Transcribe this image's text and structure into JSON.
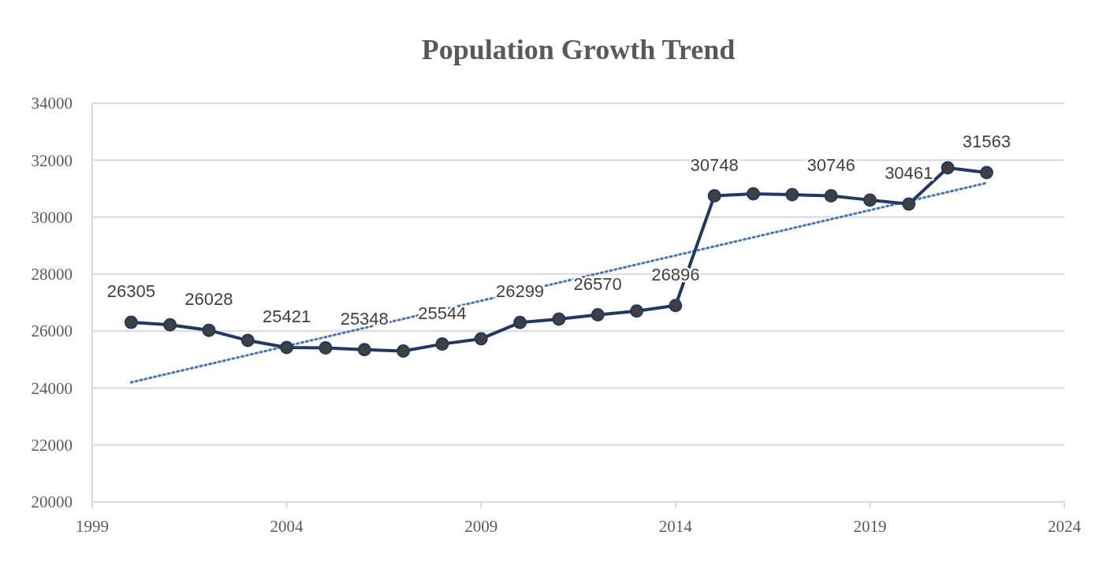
{
  "chart_data": {
    "type": "line",
    "title": "Population Growth Trend",
    "xlim": [
      1999,
      2024
    ],
    "xticks": [
      1999,
      2004,
      2009,
      2014,
      2019,
      2024
    ],
    "ylim": [
      20000,
      34000
    ],
    "yticks": [
      20000,
      22000,
      24000,
      26000,
      28000,
      30000,
      32000,
      34000
    ],
    "grid": "y",
    "x": [
      2000,
      2001,
      2002,
      2003,
      2004,
      2005,
      2006,
      2007,
      2008,
      2009,
      2010,
      2011,
      2012,
      2013,
      2014,
      2015,
      2016,
      2017,
      2018,
      2019,
      2020,
      2021,
      2022
    ],
    "series": [
      {
        "color": "#1f3864",
        "marker": "circle",
        "line_style": "solid",
        "values": [
          26305,
          26220,
          26028,
          25670,
          25421,
          25410,
          25348,
          25300,
          25544,
          25730,
          26299,
          26420,
          26570,
          26700,
          26896,
          30748,
          30820,
          30790,
          30746,
          30600,
          30461,
          31730,
          31563
        ],
        "value_labels": [
          "26305",
          null,
          "26028",
          null,
          "25421",
          null,
          "25348",
          null,
          "25544",
          null,
          "26299",
          null,
          "26570",
          null,
          "26896",
          "30748",
          null,
          null,
          "30746",
          null,
          "30461",
          null,
          "31563"
        ]
      },
      {
        "color": "#4472c4",
        "marker": "none",
        "line_style": "dotted",
        "x": [
          2000,
          2022
        ],
        "values": [
          24200,
          31200
        ]
      }
    ]
  }
}
